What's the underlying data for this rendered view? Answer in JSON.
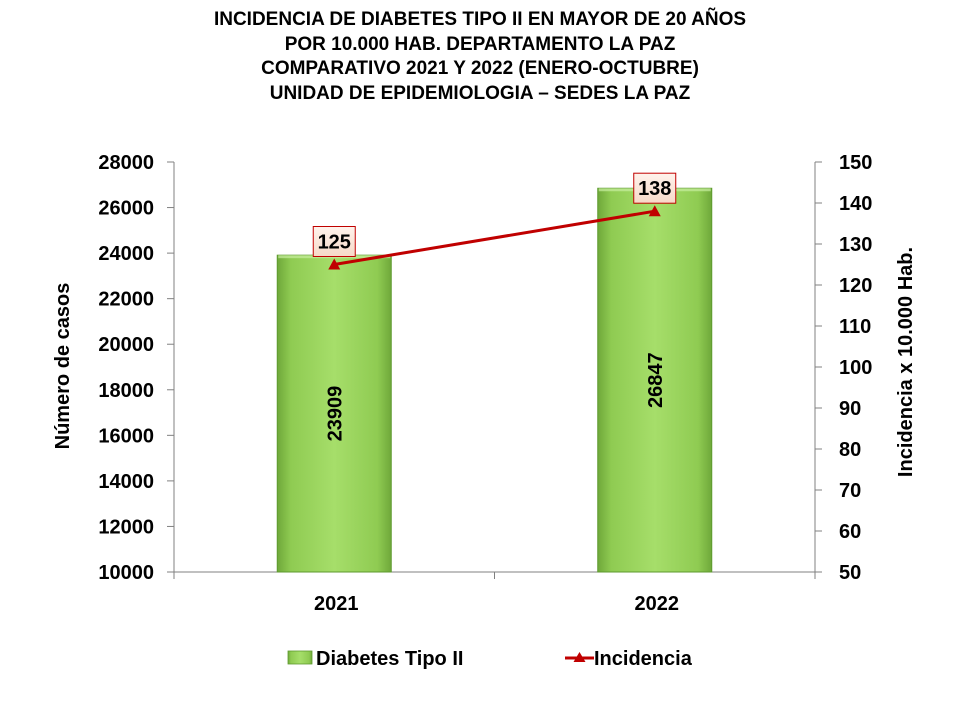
{
  "title_lines": [
    "INCIDENCIA  DE  DIABETES  TIPO  II  EN  MAYOR  DE  20  AÑOS",
    "POR  10.000  HAB.  DEPARTAMENTO  LA  PAZ",
    "COMPARATIVO  2021  Y  2022  (ENERO-OCTUBRE)",
    "UNIDAD DE EPIDEMIOLOGIA – SEDES LA PAZ"
  ],
  "chart_data": {
    "type": "bar",
    "categories": [
      "2021",
      "2022"
    ],
    "series": [
      {
        "name": "Diabetes Tipo II",
        "type": "bar",
        "axis": "left",
        "values": [
          23909,
          26847
        ],
        "color": "#92D050"
      },
      {
        "name": "Incidencia",
        "type": "line",
        "axis": "right",
        "values": [
          125,
          138
        ],
        "color": "#C00000",
        "marker": "triangle"
      }
    ],
    "ylabel": "Número de casos",
    "ylabel_right": "Incidencia x 10.000 Hab.",
    "ylim": [
      10000,
      28000
    ],
    "yticks": [
      10000,
      12000,
      14000,
      16000,
      18000,
      20000,
      22000,
      24000,
      26000,
      28000
    ],
    "ylim_right": [
      50,
      150
    ],
    "yticks_right": [
      50,
      60,
      70,
      80,
      90,
      100,
      110,
      120,
      130,
      140,
      150
    ],
    "legend_position": "bottom",
    "grid": false
  }
}
